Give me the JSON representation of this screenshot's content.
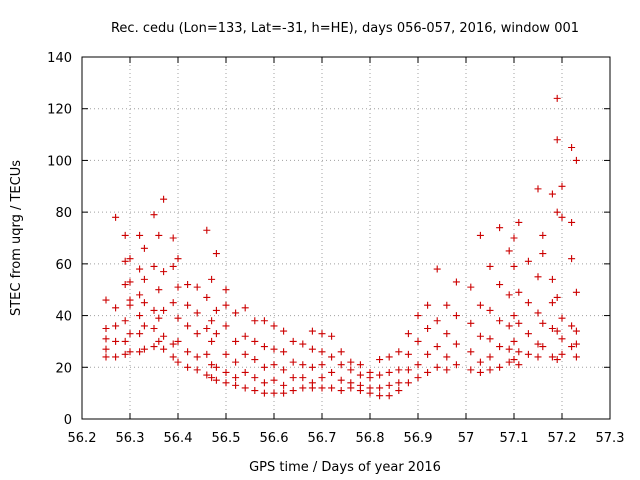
{
  "chart_data": {
    "type": "scatter",
    "title": "Rec. cedu (Lon=133, Lat=-31, h=HE), days 056-057, 2016, window 001",
    "xlabel": "GPS time / Days of year 2016",
    "ylabel": "STEC from uqrg / TECUs",
    "xlim": [
      56.2,
      57.3
    ],
    "ylim": [
      0,
      140
    ],
    "x_ticks": [
      "56.2",
      "56.3",
      "56.4",
      "56.5",
      "56.6",
      "56.7",
      "56.8",
      "56.9",
      "57",
      "57.1",
      "57.2",
      "57.3"
    ],
    "y_ticks": [
      "0",
      "20",
      "40",
      "60",
      "80",
      "100",
      "120",
      "140"
    ],
    "grid": true,
    "marker": "+",
    "color": "#cc0000",
    "series": [
      {
        "name": "STEC",
        "points": [
          [
            56.25,
            46
          ],
          [
            56.25,
            35
          ],
          [
            56.25,
            31
          ],
          [
            56.25,
            27
          ],
          [
            56.25,
            24
          ],
          [
            56.27,
            78
          ],
          [
            56.27,
            43
          ],
          [
            56.27,
            36
          ],
          [
            56.27,
            30
          ],
          [
            56.27,
            24
          ],
          [
            56.29,
            71
          ],
          [
            56.29,
            61
          ],
          [
            56.29,
            52
          ],
          [
            56.29,
            38
          ],
          [
            56.29,
            30
          ],
          [
            56.29,
            25
          ],
          [
            56.3,
            62
          ],
          [
            56.3,
            53
          ],
          [
            56.3,
            46
          ],
          [
            56.3,
            44
          ],
          [
            56.3,
            33
          ],
          [
            56.3,
            26
          ],
          [
            56.32,
            71
          ],
          [
            56.32,
            58
          ],
          [
            56.32,
            48
          ],
          [
            56.32,
            40
          ],
          [
            56.32,
            33
          ],
          [
            56.32,
            26
          ],
          [
            56.33,
            66
          ],
          [
            56.33,
            54
          ],
          [
            56.33,
            45
          ],
          [
            56.33,
            36
          ],
          [
            56.33,
            27
          ],
          [
            56.35,
            79
          ],
          [
            56.35,
            59
          ],
          [
            56.35,
            42
          ],
          [
            56.35,
            35
          ],
          [
            56.35,
            28
          ],
          [
            56.36,
            71
          ],
          [
            56.36,
            50
          ],
          [
            56.36,
            39
          ],
          [
            56.36,
            30
          ],
          [
            56.37,
            85
          ],
          [
            56.37,
            57
          ],
          [
            56.37,
            42
          ],
          [
            56.37,
            32
          ],
          [
            56.37,
            27
          ],
          [
            56.39,
            70
          ],
          [
            56.39,
            59
          ],
          [
            56.39,
            45
          ],
          [
            56.39,
            29
          ],
          [
            56.39,
            24
          ],
          [
            56.4,
            62
          ],
          [
            56.4,
            51
          ],
          [
            56.4,
            39
          ],
          [
            56.4,
            30
          ],
          [
            56.4,
            22
          ],
          [
            56.42,
            52
          ],
          [
            56.42,
            44
          ],
          [
            56.42,
            36
          ],
          [
            56.42,
            26
          ],
          [
            56.42,
            20
          ],
          [
            56.44,
            51
          ],
          [
            56.44,
            41
          ],
          [
            56.44,
            33
          ],
          [
            56.44,
            24
          ],
          [
            56.44,
            19
          ],
          [
            56.46,
            73
          ],
          [
            56.46,
            47
          ],
          [
            56.46,
            35
          ],
          [
            56.46,
            25
          ],
          [
            56.46,
            17
          ],
          [
            56.47,
            54
          ],
          [
            56.47,
            38
          ],
          [
            56.47,
            30
          ],
          [
            56.47,
            21
          ],
          [
            56.47,
            16
          ],
          [
            56.48,
            64
          ],
          [
            56.48,
            42
          ],
          [
            56.48,
            33
          ],
          [
            56.48,
            20
          ],
          [
            56.48,
            15
          ],
          [
            56.5,
            50
          ],
          [
            56.5,
            44
          ],
          [
            56.5,
            36
          ],
          [
            56.5,
            25
          ],
          [
            56.5,
            18
          ],
          [
            56.5,
            14
          ],
          [
            56.52,
            41
          ],
          [
            56.52,
            30
          ],
          [
            56.52,
            22
          ],
          [
            56.52,
            16
          ],
          [
            56.52,
            13
          ],
          [
            56.54,
            43
          ],
          [
            56.54,
            32
          ],
          [
            56.54,
            25
          ],
          [
            56.54,
            18
          ],
          [
            56.54,
            12
          ],
          [
            56.56,
            38
          ],
          [
            56.56,
            30
          ],
          [
            56.56,
            23
          ],
          [
            56.56,
            16
          ],
          [
            56.56,
            11
          ],
          [
            56.58,
            38
          ],
          [
            56.58,
            28
          ],
          [
            56.58,
            20
          ],
          [
            56.58,
            14
          ],
          [
            56.58,
            10
          ],
          [
            56.6,
            36
          ],
          [
            56.6,
            27
          ],
          [
            56.6,
            21
          ],
          [
            56.6,
            15
          ],
          [
            56.6,
            10
          ],
          [
            56.62,
            34
          ],
          [
            56.62,
            26
          ],
          [
            56.62,
            19
          ],
          [
            56.62,
            13
          ],
          [
            56.62,
            10
          ],
          [
            56.64,
            30
          ],
          [
            56.64,
            22
          ],
          [
            56.64,
            16
          ],
          [
            56.64,
            11
          ],
          [
            56.66,
            29
          ],
          [
            56.66,
            21
          ],
          [
            56.66,
            16
          ],
          [
            56.66,
            12
          ],
          [
            56.68,
            34
          ],
          [
            56.68,
            27
          ],
          [
            56.68,
            20
          ],
          [
            56.68,
            14
          ],
          [
            56.68,
            12
          ],
          [
            56.7,
            33
          ],
          [
            56.7,
            26
          ],
          [
            56.7,
            21
          ],
          [
            56.7,
            16
          ],
          [
            56.7,
            12
          ],
          [
            56.72,
            32
          ],
          [
            56.72,
            24
          ],
          [
            56.72,
            18
          ],
          [
            56.72,
            12
          ],
          [
            56.74,
            26
          ],
          [
            56.74,
            21
          ],
          [
            56.74,
            15
          ],
          [
            56.74,
            11
          ],
          [
            56.76,
            22
          ],
          [
            56.76,
            19
          ],
          [
            56.76,
            14
          ],
          [
            56.76,
            12
          ],
          [
            56.78,
            21
          ],
          [
            56.78,
            17
          ],
          [
            56.78,
            13
          ],
          [
            56.78,
            11
          ],
          [
            56.8,
            18
          ],
          [
            56.8,
            16
          ],
          [
            56.8,
            12
          ],
          [
            56.8,
            10
          ],
          [
            56.82,
            23
          ],
          [
            56.82,
            17
          ],
          [
            56.82,
            12
          ],
          [
            56.82,
            9
          ],
          [
            56.84,
            24
          ],
          [
            56.84,
            18
          ],
          [
            56.84,
            13
          ],
          [
            56.84,
            9
          ],
          [
            56.86,
            26
          ],
          [
            56.86,
            19
          ],
          [
            56.86,
            14
          ],
          [
            56.86,
            11
          ],
          [
            56.88,
            33
          ],
          [
            56.88,
            25
          ],
          [
            56.88,
            19
          ],
          [
            56.88,
            14
          ],
          [
            56.9,
            40
          ],
          [
            56.9,
            30
          ],
          [
            56.9,
            21
          ],
          [
            56.9,
            16
          ],
          [
            56.92,
            44
          ],
          [
            56.92,
            35
          ],
          [
            56.92,
            25
          ],
          [
            56.92,
            18
          ],
          [
            56.94,
            58
          ],
          [
            56.94,
            38
          ],
          [
            56.94,
            28
          ],
          [
            56.94,
            20
          ],
          [
            56.96,
            44
          ],
          [
            56.96,
            33
          ],
          [
            56.96,
            24
          ],
          [
            56.96,
            19
          ],
          [
            56.98,
            53
          ],
          [
            56.98,
            40
          ],
          [
            56.98,
            29
          ],
          [
            56.98,
            21
          ],
          [
            57.01,
            51
          ],
          [
            57.01,
            37
          ],
          [
            57.01,
            26
          ],
          [
            57.01,
            19
          ],
          [
            57.03,
            71
          ],
          [
            57.03,
            44
          ],
          [
            57.03,
            32
          ],
          [
            57.03,
            22
          ],
          [
            57.03,
            18
          ],
          [
            57.05,
            59
          ],
          [
            57.05,
            42
          ],
          [
            57.05,
            31
          ],
          [
            57.05,
            24
          ],
          [
            57.05,
            19
          ],
          [
            57.07,
            74
          ],
          [
            57.07,
            52
          ],
          [
            57.07,
            38
          ],
          [
            57.07,
            28
          ],
          [
            57.07,
            20
          ],
          [
            57.09,
            65
          ],
          [
            57.09,
            48
          ],
          [
            57.09,
            36
          ],
          [
            57.09,
            27
          ],
          [
            57.09,
            22
          ],
          [
            57.1,
            70
          ],
          [
            57.1,
            59
          ],
          [
            57.1,
            40
          ],
          [
            57.1,
            30
          ],
          [
            57.1,
            23
          ],
          [
            57.11,
            76
          ],
          [
            57.11,
            49
          ],
          [
            57.11,
            37
          ],
          [
            57.11,
            26
          ],
          [
            57.11,
            21
          ],
          [
            57.13,
            61
          ],
          [
            57.13,
            45
          ],
          [
            57.13,
            33
          ],
          [
            57.13,
            25
          ],
          [
            57.15,
            89
          ],
          [
            57.15,
            55
          ],
          [
            57.15,
            41
          ],
          [
            57.15,
            29
          ],
          [
            57.15,
            24
          ],
          [
            57.16,
            71
          ],
          [
            57.16,
            64
          ],
          [
            57.16,
            37
          ],
          [
            57.16,
            28
          ],
          [
            57.18,
            87
          ],
          [
            57.18,
            54
          ],
          [
            57.18,
            45
          ],
          [
            57.18,
            35
          ],
          [
            57.18,
            24
          ],
          [
            57.19,
            124
          ],
          [
            57.19,
            108
          ],
          [
            57.19,
            80
          ],
          [
            57.19,
            47
          ],
          [
            57.19,
            34
          ],
          [
            57.19,
            23
          ],
          [
            57.2,
            90
          ],
          [
            57.2,
            78
          ],
          [
            57.2,
            39
          ],
          [
            57.2,
            31
          ],
          [
            57.2,
            25
          ],
          [
            57.22,
            105
          ],
          [
            57.22,
            76
          ],
          [
            57.22,
            62
          ],
          [
            57.22,
            36
          ],
          [
            57.22,
            28
          ],
          [
            57.23,
            100
          ],
          [
            57.23,
            49
          ],
          [
            57.23,
            34
          ],
          [
            57.23,
            29
          ],
          [
            57.23,
            24
          ]
        ]
      }
    ]
  }
}
